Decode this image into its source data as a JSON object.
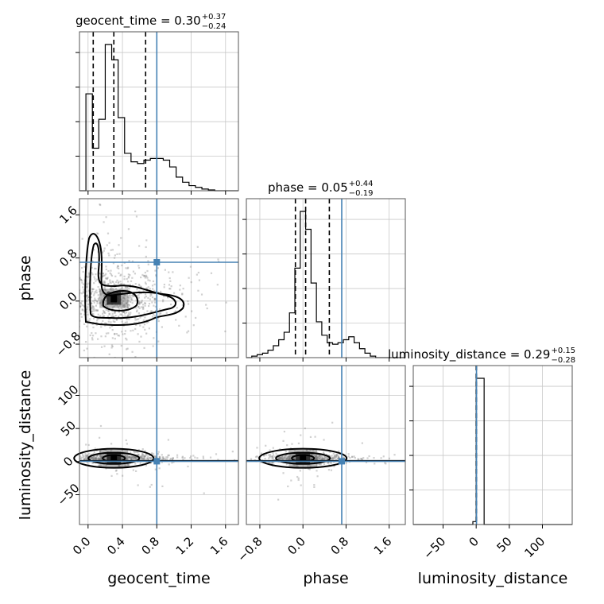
{
  "chart_data": {
    "type": "corner",
    "truth_color": "#4682b4",
    "parameters": [
      {
        "name": "geocent_time",
        "title_prefix": "geocent_time = ",
        "median": "0.30",
        "upper": "+0.37",
        "lower": "−0.24",
        "range": [
          -0.1,
          1.75
        ],
        "ticks": [
          0.0,
          0.4,
          0.8,
          1.2,
          1.6
        ],
        "tick_labels": [
          "0.0",
          "0.4",
          "0.8",
          "1.2",
          "1.6"
        ],
        "truth": 0.8,
        "quantiles": [
          0.06,
          0.3,
          0.67
        ],
        "hist_edges": [
          -0.1,
          -0.025,
          0.05,
          0.125,
          0.2,
          0.275,
          0.35,
          0.425,
          0.5,
          0.575,
          0.65,
          0.725,
          0.8,
          0.875,
          0.95,
          1.025,
          1.1,
          1.175,
          1.25,
          1.325,
          1.4,
          1.475,
          1.55,
          1.625,
          1.75
        ],
        "hist_counts": [
          0,
          0.57,
          0.25,
          0.42,
          0.86,
          0.77,
          0.43,
          0.22,
          0.17,
          0.16,
          0.18,
          0.19,
          0.19,
          0.18,
          0.14,
          0.08,
          0.05,
          0.03,
          0.02,
          0.01,
          0.005,
          0,
          0,
          0
        ]
      },
      {
        "name": "phase",
        "title_prefix": "phase = ",
        "median": "0.05",
        "upper": "+0.44",
        "lower": "−0.19",
        "range": [
          -1.05,
          1.9
        ],
        "ticks": [
          -0.8,
          0.0,
          0.8,
          1.6
        ],
        "tick_labels": [
          "−0.8",
          "0.0",
          "0.8",
          "1.6"
        ],
        "truth": 0.72,
        "quantiles": [
          -0.14,
          0.05,
          0.49
        ],
        "hist_edges": [
          -1.05,
          -0.95,
          -0.85,
          -0.75,
          -0.65,
          -0.55,
          -0.45,
          -0.35,
          -0.25,
          -0.15,
          -0.05,
          0.05,
          0.15,
          0.25,
          0.35,
          0.45,
          0.55,
          0.65,
          0.75,
          0.85,
          0.95,
          1.05,
          1.15,
          1.25,
          1.35,
          1.9
        ],
        "hist_counts": [
          0,
          0.01,
          0.02,
          0.03,
          0.05,
          0.08,
          0.12,
          0.17,
          0.3,
          0.6,
          0.98,
          0.86,
          0.5,
          0.24,
          0.15,
          0.1,
          0.09,
          0.1,
          0.12,
          0.14,
          0.1,
          0.06,
          0.03,
          0.01,
          0
        ]
      },
      {
        "name": "luminosity_distance",
        "title_prefix": "luminosity_distance = ",
        "median": "0.29",
        "upper": "+0.15",
        "lower": "−0.28",
        "range": [
          -95,
          145
        ],
        "ticks": [
          -50,
          0,
          50,
          100
        ],
        "tick_labels": [
          "−50",
          "0",
          "50",
          "100"
        ],
        "truth": 0.5,
        "quantiles": [
          0.01,
          0.29,
          0.44
        ],
        "hist_edges": [
          -95,
          -5,
          0,
          12,
          145
        ],
        "hist_counts": [
          0,
          0.02,
          1.0,
          0
        ]
      }
    ],
    "yticks_phase": [
      -0.8,
      0.0,
      0.8,
      1.6
    ],
    "yticks_phase_labels": [
      "−0.8",
      "0.0",
      "0.8",
      "1.6"
    ],
    "yticks_dist": [
      -50,
      0,
      50,
      100
    ],
    "yticks_dist_labels": [
      "−50",
      "0",
      "50",
      "100"
    ],
    "grid": true,
    "levels": 3,
    "density_peaks": [
      {
        "pair": "geocent_time-phase",
        "x": 0.3,
        "y": 0.05
      },
      {
        "pair": "geocent_time-luminosity_distance",
        "x": 0.3,
        "y": 5
      },
      {
        "pair": "phase-luminosity_distance",
        "x": 0.0,
        "y": 5
      }
    ]
  }
}
